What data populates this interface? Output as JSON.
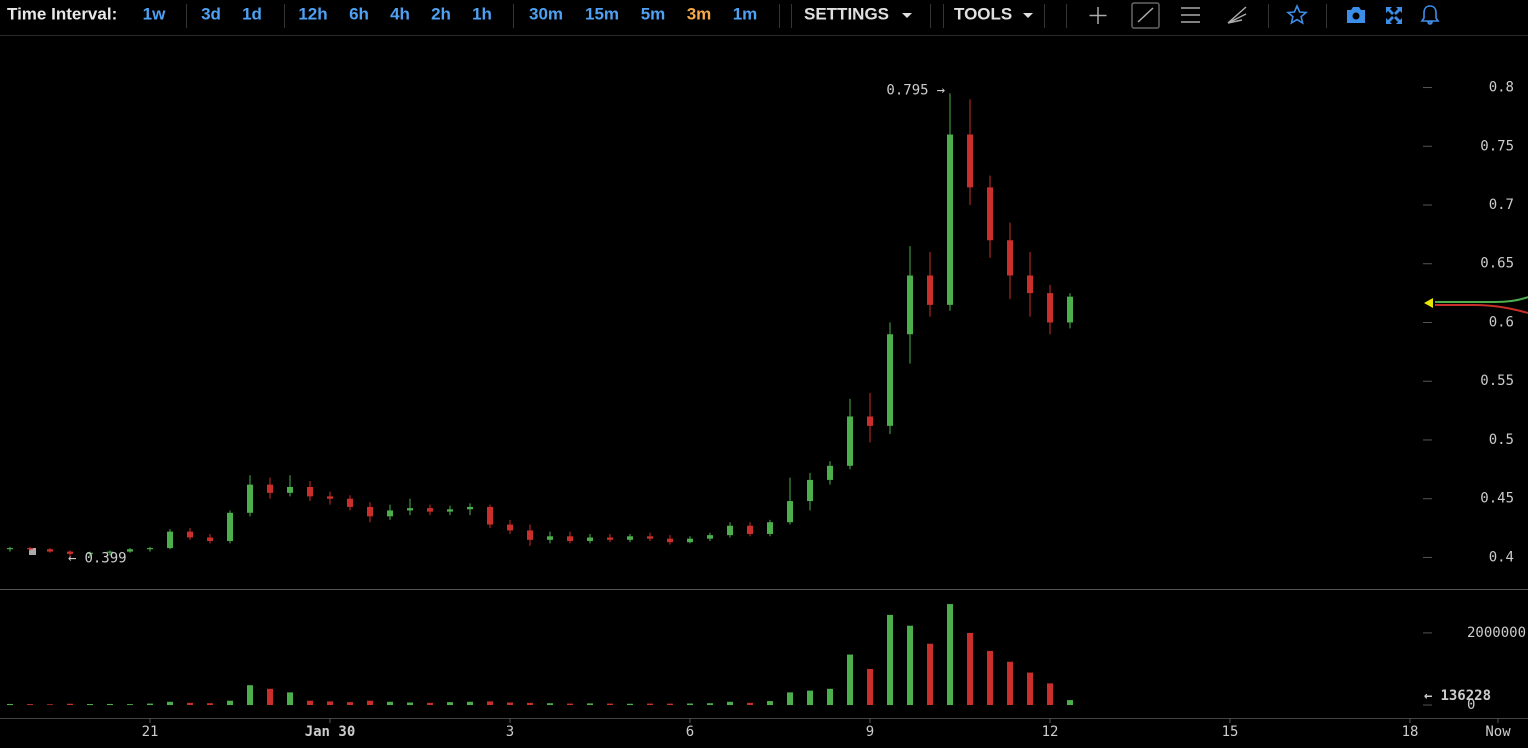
{
  "toolbar": {
    "label": "Time Interval:",
    "intervals": [
      [
        "1w"
      ],
      [
        "3d",
        "1d"
      ],
      [
        "12h",
        "6h",
        "4h",
        "2h",
        "1h"
      ],
      [
        "30m",
        "15m",
        "5m",
        "3m",
        "1m"
      ]
    ],
    "active": [
      3,
      3
    ],
    "menus": [
      "SETTINGS",
      "TOOLS"
    ]
  },
  "chart_data": {
    "type": "candlestick",
    "up_color": "#4cae4c",
    "down_color": "#c9302c",
    "x": [
      0,
      1,
      2,
      3,
      4,
      5,
      6,
      7,
      8,
      9,
      10,
      11,
      12,
      13,
      14,
      15,
      16,
      17,
      18,
      19,
      20,
      21,
      22,
      23,
      24,
      25,
      26,
      27,
      28,
      29,
      30,
      31,
      32,
      33,
      34,
      35,
      36,
      37,
      38,
      39,
      40,
      41,
      42,
      43,
      44,
      45,
      46,
      47,
      48,
      49,
      50,
      51,
      52,
      53
    ],
    "open": [
      0.407,
      0.408,
      0.407,
      0.405,
      0.403,
      0.404,
      0.405,
      0.407,
      0.408,
      0.422,
      0.417,
      0.414,
      0.438,
      0.462,
      0.455,
      0.46,
      0.452,
      0.45,
      0.443,
      0.435,
      0.44,
      0.442,
      0.439,
      0.441,
      0.443,
      0.428,
      0.423,
      0.415,
      0.418,
      0.414,
      0.417,
      0.415,
      0.418,
      0.416,
      0.413,
      0.416,
      0.419,
      0.427,
      0.42,
      0.43,
      0.448,
      0.466,
      0.478,
      0.52,
      0.512,
      0.59,
      0.64,
      0.615,
      0.76,
      0.715,
      0.67,
      0.64,
      0.625,
      0.6
    ],
    "high": [
      0.409,
      0.409,
      0.408,
      0.406,
      0.405,
      0.406,
      0.408,
      0.409,
      0.424,
      0.425,
      0.42,
      0.44,
      0.47,
      0.468,
      0.47,
      0.465,
      0.456,
      0.453,
      0.447,
      0.445,
      0.45,
      0.445,
      0.444,
      0.446,
      0.445,
      0.432,
      0.428,
      0.422,
      0.422,
      0.42,
      0.42,
      0.42,
      0.421,
      0.419,
      0.418,
      0.421,
      0.43,
      0.43,
      0.432,
      0.468,
      0.472,
      0.482,
      0.535,
      0.54,
      0.6,
      0.665,
      0.66,
      0.795,
      0.79,
      0.725,
      0.685,
      0.66,
      0.632,
      0.625
    ],
    "low": [
      0.405,
      0.406,
      0.404,
      0.399,
      0.401,
      0.402,
      0.404,
      0.405,
      0.407,
      0.415,
      0.412,
      0.412,
      0.435,
      0.45,
      0.452,
      0.448,
      0.445,
      0.44,
      0.43,
      0.432,
      0.436,
      0.436,
      0.436,
      0.436,
      0.425,
      0.42,
      0.41,
      0.412,
      0.412,
      0.412,
      0.413,
      0.413,
      0.414,
      0.411,
      0.412,
      0.414,
      0.417,
      0.418,
      0.418,
      0.428,
      0.44,
      0.462,
      0.475,
      0.498,
      0.505,
      0.565,
      0.605,
      0.61,
      0.7,
      0.655,
      0.62,
      0.605,
      0.59,
      0.595
    ],
    "close": [
      0.408,
      0.407,
      0.405,
      0.403,
      0.404,
      0.405,
      0.407,
      0.408,
      0.422,
      0.417,
      0.414,
      0.438,
      0.462,
      0.455,
      0.46,
      0.452,
      0.45,
      0.443,
      0.435,
      0.44,
      0.442,
      0.439,
      0.441,
      0.443,
      0.428,
      0.423,
      0.415,
      0.418,
      0.414,
      0.417,
      0.415,
      0.418,
      0.416,
      0.413,
      0.416,
      0.419,
      0.427,
      0.42,
      0.43,
      0.448,
      0.466,
      0.478,
      0.52,
      0.512,
      0.59,
      0.64,
      0.615,
      0.76,
      0.715,
      0.67,
      0.64,
      0.625,
      0.6,
      0.622
    ],
    "xlim": [
      -0.5,
      70.5
    ],
    "xticks": [
      {
        "value": 7,
        "label": "21"
      },
      {
        "value": 16,
        "label": "Jan 30"
      },
      {
        "value": 25,
        "label": "3"
      },
      {
        "value": 34,
        "label": "6"
      },
      {
        "value": 43,
        "label": "9"
      },
      {
        "value": 52,
        "label": "12"
      },
      {
        "value": 61,
        "label": "15"
      },
      {
        "value": 70,
        "label": "18"
      },
      {
        "value": 74.4,
        "label": "Now"
      }
    ],
    "ylim": [
      0.374,
      0.843
    ],
    "yticks": [
      0.4,
      0.45,
      0.5,
      0.55,
      0.6,
      0.65,
      0.7,
      0.75,
      0.8
    ],
    "high_marker": {
      "value": 0.795,
      "arrow": "→"
    },
    "low_marker": {
      "value": 0.399,
      "arrow": "←"
    },
    "volume": {
      "values": [
        30000,
        25000,
        20000,
        35000,
        28000,
        30000,
        25000,
        40000,
        90000,
        60000,
        50000,
        120000,
        550000,
        450000,
        350000,
        120000,
        100000,
        80000,
        120000,
        90000,
        70000,
        60000,
        80000,
        90000,
        100000,
        70000,
        60000,
        50000,
        40000,
        45000,
        40000,
        35000,
        40000,
        38000,
        42000,
        50000,
        90000,
        60000,
        110000,
        350000,
        400000,
        450000,
        1400000,
        1000000,
        2500000,
        2200000,
        1700000,
        2800000,
        2000000,
        1500000,
        1200000,
        900000,
        600000,
        136228
      ],
      "ylim": [
        -360000,
        3190000
      ],
      "yticks": [
        0,
        2000000
      ],
      "last": 136228,
      "arrow": "←"
    }
  }
}
